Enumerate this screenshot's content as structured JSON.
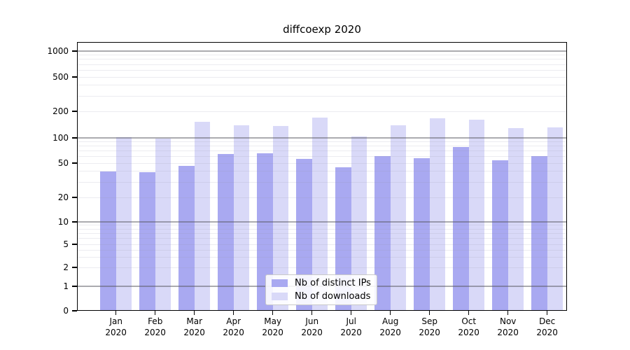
{
  "title": "diffcoexp 2020",
  "legend": {
    "items": [
      {
        "label": "Nb of distinct IPs"
      },
      {
        "label": "Nb of downloads"
      }
    ]
  },
  "colors": {
    "bar_distinct_ips": "#a9a9f1",
    "bar_downloads": "#d9d9f8",
    "grid_major": "#9a9aa0",
    "grid_minor": "#e9e9ee",
    "axis": "#000000",
    "background": "#ffffff"
  },
  "chart_data": {
    "type": "bar",
    "title": "diffcoexp 2020",
    "categories": [
      "Jan 2020",
      "Feb 2020",
      "Mar 2020",
      "Apr 2020",
      "May 2020",
      "Jun 2020",
      "Jul 2020",
      "Aug 2020",
      "Sep 2020",
      "Oct 2020",
      "Nov 2020",
      "Dec 2020"
    ],
    "series": [
      {
        "name": "Nb of distinct IPs",
        "color": "#a9a9f1",
        "values": [
          40,
          39,
          46,
          64,
          66,
          56,
          45,
          61,
          57,
          78,
          54,
          61
        ]
      },
      {
        "name": "Nb of downloads",
        "color": "#d9d9f8",
        "values": [
          102,
          98,
          151,
          138,
          136,
          171,
          104,
          138,
          167,
          162,
          130,
          131
        ]
      }
    ],
    "xlabel": "",
    "ylabel": "",
    "yticks": [
      0,
      1,
      2,
      5,
      10,
      20,
      50,
      100,
      200,
      500,
      1000
    ],
    "ylim": [
      0,
      1000
    ],
    "yscale": "log-like with 0 baseline",
    "grid": "horizontal; dark lines at 1,10,100,1000; faint lines at 2-9 multiples; drawn over bars",
    "legend_position": "bottom-center inside plot"
  }
}
